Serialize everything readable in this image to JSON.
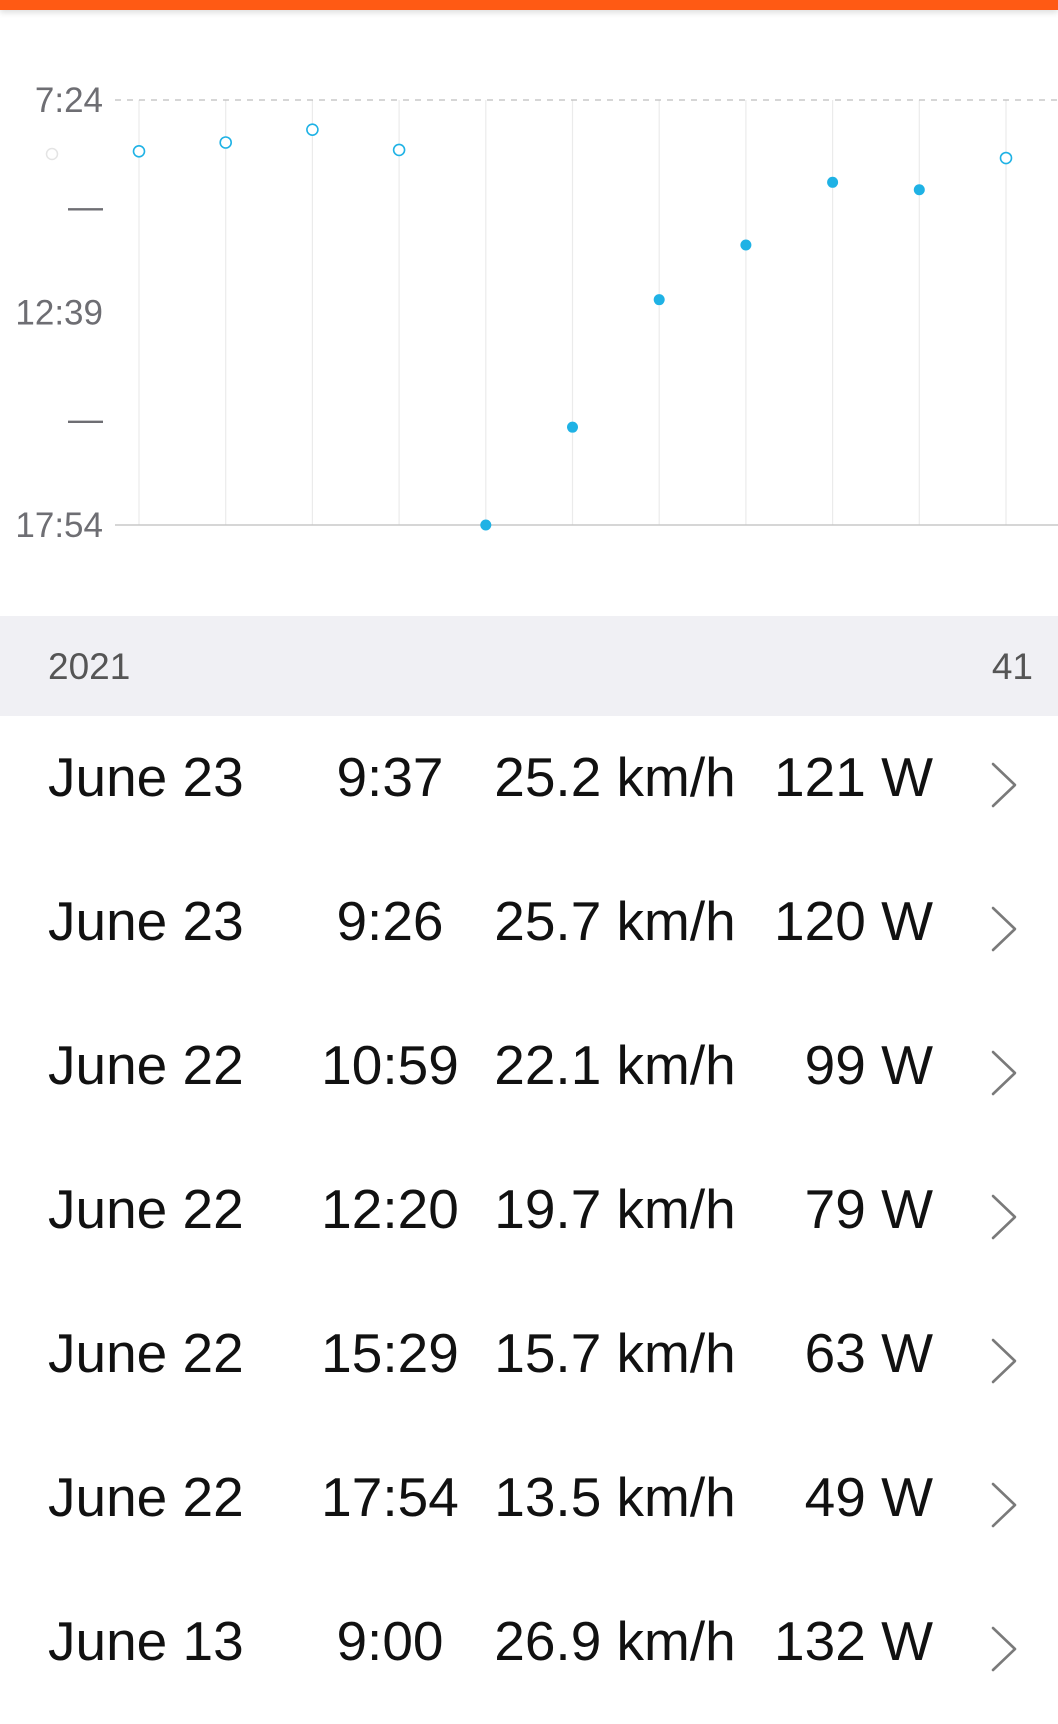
{
  "colors": {
    "accent_bar": "#ff5a14",
    "point": "#1fb2e5",
    "grid": "#ebebeb",
    "header_bg": "#f0f0f4",
    "text": "#111111",
    "muted_text": "#6e6e73"
  },
  "chart_data": {
    "type": "scatter",
    "title": "",
    "xlabel": "",
    "ylabel": "",
    "y_axis_inverted": true,
    "y_unit": "min:sec (time)",
    "ylim": [
      "17:54",
      "7:24"
    ],
    "yticks": [
      "7:24",
      "12:39",
      "17:54"
    ],
    "minor_ticks": [
      "—",
      "—"
    ],
    "grid": "vertical",
    "series": [
      {
        "points": [
          {
            "y": "8:40",
            "style": "hollow"
          },
          {
            "y": "8:27",
            "style": "hollow"
          },
          {
            "y": "8:08",
            "style": "hollow"
          },
          {
            "y": "8:38",
            "style": "hollow"
          },
          {
            "y": "17:54",
            "style": "filled"
          },
          {
            "y": "15:29",
            "style": "filled"
          },
          {
            "y": "12:20",
            "style": "filled"
          },
          {
            "y": "10:59",
            "style": "filled"
          },
          {
            "y": "9:26",
            "style": "filled"
          },
          {
            "y": "9:37",
            "style": "filled"
          },
          {
            "y": "8:50",
            "style": "hollow"
          }
        ]
      }
    ]
  },
  "summary": {
    "year": "2021",
    "count": "41"
  },
  "rides": [
    {
      "date": "June 23",
      "time": "9:37",
      "speed": "25.2 km/h",
      "power": "121 W"
    },
    {
      "date": "June 23",
      "time": "9:26",
      "speed": "25.7 km/h",
      "power": "120 W"
    },
    {
      "date": "June 22",
      "time": "10:59",
      "speed": "22.1 km/h",
      "power": "99 W"
    },
    {
      "date": "June 22",
      "time": "12:20",
      "speed": "19.7 km/h",
      "power": "79 W"
    },
    {
      "date": "June 22",
      "time": "15:29",
      "speed": "15.7 km/h",
      "power": "63 W"
    },
    {
      "date": "June 22",
      "time": "17:54",
      "speed": "13.5 km/h",
      "power": "49 W"
    },
    {
      "date": "June 13",
      "time": "9:00",
      "speed": "26.9 km/h",
      "power": "132 W"
    }
  ],
  "icons": {
    "row_action": "chevron-right-icon"
  }
}
